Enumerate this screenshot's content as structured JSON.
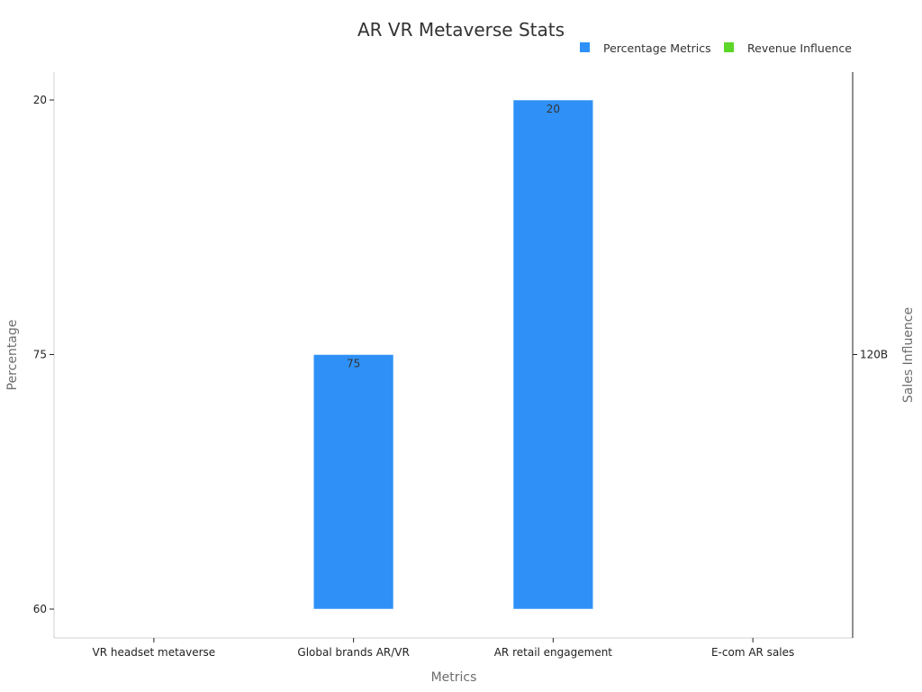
{
  "chart_data": {
    "type": "bar",
    "title": "AR VR Metaverse Stats",
    "xlabel": "Metrics",
    "ylabel": "Percentage",
    "y2label": "Sales Influence",
    "categories": [
      "VR headset metaverse",
      "Global brands AR/VR",
      "AR retail engagement",
      "E-com AR sales"
    ],
    "y_axis": {
      "type": "category",
      "ticks": [
        "60",
        "75",
        "20"
      ]
    },
    "y2_axis": {
      "ticks": [
        "120B"
      ]
    },
    "series": [
      {
        "name": "Percentage Metrics",
        "color": "#2f91f7",
        "values": [
          null,
          "75",
          "20",
          null
        ],
        "data_labels": [
          null,
          "75",
          "20",
          null
        ]
      },
      {
        "name": "Revenue Influence",
        "color": "#5cd629",
        "values": [
          null,
          null,
          null,
          null
        ]
      }
    ],
    "bar_base": "60",
    "legend_position": "top-right",
    "grid": false
  }
}
